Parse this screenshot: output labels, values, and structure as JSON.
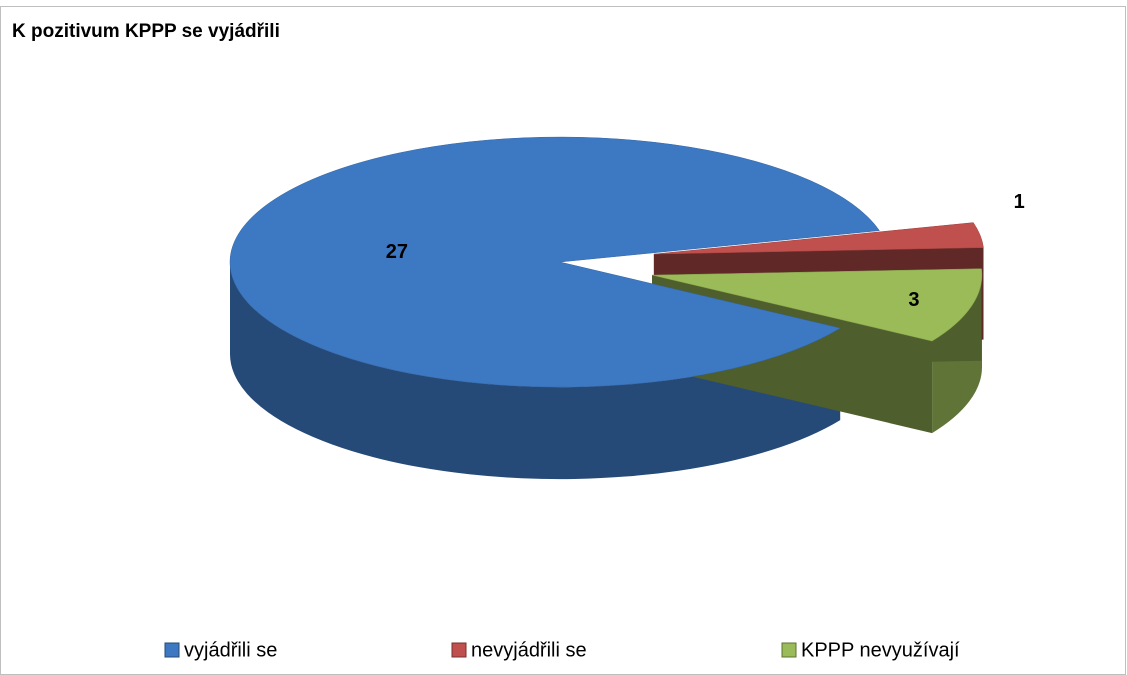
{
  "chart_data": {
    "type": "pie",
    "title": "K pozitivum KPPP se vyjádřili",
    "categories": [
      "vyjádřili se",
      "nevyjádřili se",
      "KPPP nevyužívají"
    ],
    "values": [
      27,
      1,
      3
    ],
    "colors": [
      "#3d78c2",
      "#c0504d",
      "#9bbb59"
    ],
    "legend": "bottom"
  }
}
